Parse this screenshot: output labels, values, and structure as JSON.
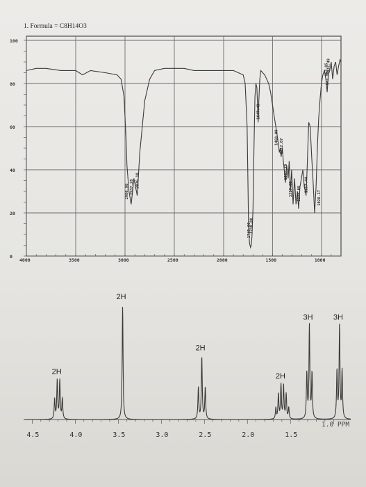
{
  "header": {
    "problem_label": "1. Formula = C8H14O3"
  },
  "chart_data": [
    {
      "type": "line",
      "name": "IR spectrum",
      "x_ticks": [
        "4000",
        "3500",
        "3000",
        "2500",
        "2000",
        "1500",
        "1000"
      ],
      "x_tick_values": [
        4000,
        3500,
        3000,
        2500,
        2000,
        1500,
        1000
      ],
      "y_ticks": [
        "100",
        "80",
        "60",
        "40",
        "20",
        "0"
      ],
      "y_tick_values": [
        100,
        80,
        60,
        40,
        20,
        0
      ],
      "xlim": [
        4000,
        800
      ],
      "ylim": [
        0,
        100
      ],
      "grid": true,
      "series": [
        {
          "x": [
            4000,
            3900,
            3800,
            3650,
            3500,
            3430,
            3350,
            3200,
            3080,
            3040,
            3010,
            2990,
            2980,
            2960,
            2937,
            2910,
            2876,
            2850,
            2800,
            2750,
            2700,
            2600,
            2500,
            2400,
            2300,
            2200,
            2100,
            2000,
            1950,
            1900,
            1850,
            1800,
            1780,
            1760,
            1750,
            1745,
            1735,
            1725,
            1718,
            1710,
            1700,
            1690,
            1680,
            1670,
            1660,
            1655,
            1647,
            1640,
            1630,
            1620,
            1600,
            1580,
            1560,
            1540,
            1520,
            1500,
            1480,
            1460,
            1450,
            1440,
            1430,
            1420,
            1412,
            1400,
            1390,
            1380,
            1367,
            1355,
            1340,
            1330,
            1317,
            1305,
            1290,
            1275,
            1260,
            1245,
            1234,
            1220,
            1205,
            1190,
            1175,
            1165,
            1157,
            1145,
            1130,
            1115,
            1100,
            1085,
            1070,
            1055,
            1040,
            1028,
            1015,
            1000,
            985,
            970,
            955,
            941,
            930,
            915,
            900,
            885,
            870,
            855,
            840,
            825,
            810,
            800
          ],
          "y": [
            86,
            87,
            87,
            86,
            86,
            84,
            86,
            85,
            84,
            82,
            74,
            55,
            42,
            30,
            24,
            36,
            28,
            48,
            72,
            82,
            86,
            87,
            87,
            87,
            86,
            86,
            86,
            86,
            86,
            86,
            85,
            84,
            80,
            60,
            30,
            12,
            6,
            4,
            5,
            9,
            22,
            50,
            74,
            80,
            78,
            72,
            62,
            72,
            82,
            86,
            85,
            84,
            82,
            80,
            76,
            70,
            64,
            58,
            55,
            52,
            48,
            50,
            46,
            50,
            44,
            40,
            34,
            42,
            36,
            44,
            30,
            40,
            24,
            36,
            24,
            30,
            22,
            32,
            36,
            40,
            32,
            30,
            28,
            42,
            62,
            60,
            46,
            34,
            20,
            32,
            52,
            64,
            72,
            80,
            84,
            86,
            82,
            76,
            84,
            86,
            90,
            82,
            88,
            90,
            84,
            88,
            91,
            90
          ]
        }
      ],
      "peak_labels": [
        {
          "x": 2986,
          "y": 25,
          "text": "2986.98"
        },
        {
          "x": 2937,
          "y": 27,
          "text": "2937.28"
        },
        {
          "x": 2876,
          "y": 30,
          "text": "2876.18"
        },
        {
          "x": 1745,
          "y": 7,
          "text": "1745.00"
        },
        {
          "x": 1718,
          "y": 9,
          "text": "1718.00"
        },
        {
          "x": 1647,
          "y": 62,
          "text": "1647.42"
        },
        {
          "x": 1465,
          "y": 50,
          "text": "1468.09"
        },
        {
          "x": 1412,
          "y": 46,
          "text": "1412.07"
        },
        {
          "x": 1367,
          "y": 34,
          "text": "1367.70"
        },
        {
          "x": 1317,
          "y": 26,
          "text": "1317.65"
        },
        {
          "x": 1234,
          "y": 24,
          "text": "1234.09"
        },
        {
          "x": 1157,
          "y": 28,
          "text": "1157.44"
        },
        {
          "x": 1028,
          "y": 22,
          "text": "1028.17"
        },
        {
          "x": 952,
          "y": 82,
          "text": "952.85"
        },
        {
          "x": 941,
          "y": 78,
          "text": "941.30"
        },
        {
          "x": 932,
          "y": 84,
          "text": "932.49"
        }
      ]
    },
    {
      "type": "line",
      "name": "1H NMR spectrum",
      "xlabel": "1.0 PPM",
      "x_ticks": [
        "4.5",
        "4.0",
        "3.5",
        "3.0",
        "2.5",
        "2.0",
        "1.5"
      ],
      "x_tick_values": [
        4.5,
        4.0,
        3.5,
        3.0,
        2.5,
        2.0,
        1.5
      ],
      "xlim": [
        4.6,
        0.8
      ],
      "ylim": [
        0,
        100
      ],
      "peaks": [
        {
          "center": 4.2,
          "lines": [
            4.24,
            4.21,
            4.18,
            4.15
          ],
          "heights": [
            18,
            34,
            34,
            18
          ]
        },
        {
          "center": 3.45,
          "lines": [
            3.45
          ],
          "heights": [
            100
          ]
        },
        {
          "center": 2.53,
          "lines": [
            2.57,
            2.53,
            2.49
          ],
          "heights": [
            28,
            55,
            28
          ]
        },
        {
          "center": 1.6,
          "lines": [
            1.67,
            1.64,
            1.61,
            1.58,
            1.55,
            1.52
          ],
          "heights": [
            10,
            22,
            30,
            30,
            22,
            10
          ]
        },
        {
          "center": 1.28,
          "lines": [
            1.31,
            1.28,
            1.25
          ],
          "heights": [
            40,
            82,
            40
          ]
        },
        {
          "center": 0.93,
          "lines": [
            0.96,
            0.93,
            0.9
          ],
          "heights": [
            42,
            82,
            42
          ]
        }
      ],
      "integrations": [
        {
          "x": 4.2,
          "y": 34,
          "text": "2H"
        },
        {
          "x": 3.45,
          "y": 100,
          "text": "2H"
        },
        {
          "x": 2.53,
          "y": 55,
          "text": "2H"
        },
        {
          "x": 1.6,
          "y": 30,
          "text": "2H"
        },
        {
          "x": 1.28,
          "y": 82,
          "text": "3H"
        },
        {
          "x": 0.93,
          "y": 82,
          "text": "3H"
        }
      ]
    }
  ]
}
